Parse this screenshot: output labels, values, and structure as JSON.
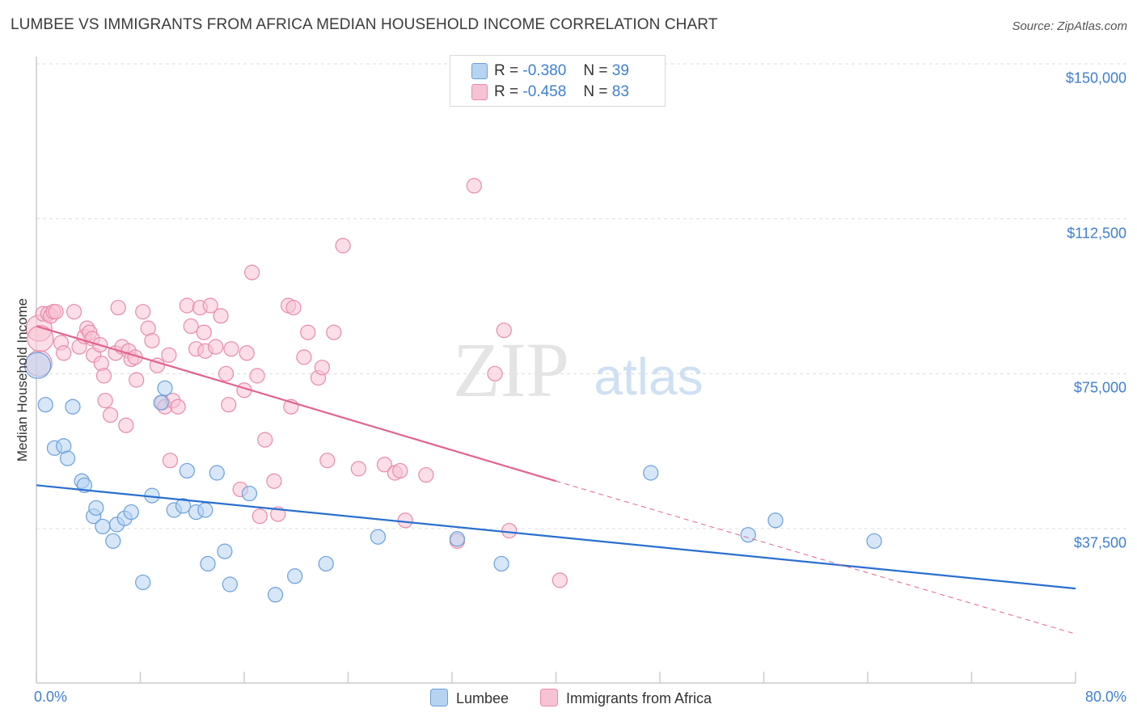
{
  "title": "LUMBEE VS IMMIGRANTS FROM AFRICA MEDIAN HOUSEHOLD INCOME CORRELATION CHART",
  "source": "Source: ZipAtlas.com",
  "watermark": {
    "zip": "ZIP",
    "atlas": "atlas"
  },
  "legend": {
    "r_label": "R =",
    "n_label": "N =",
    "rows": [
      {
        "r": "-0.380",
        "n": "39"
      },
      {
        "r": "-0.458",
        "n": "83"
      }
    ]
  },
  "colors": {
    "lumbee_fill": "#b7d3f2",
    "lumbee_stroke": "#6a9fdc",
    "lumbee_line": "#2a6fd0",
    "africa_fill": "#f7c3d4",
    "africa_stroke": "#e98aaa",
    "africa_line": "#e2638f",
    "axis_text": "#3f7fd0"
  },
  "chart_data": {
    "type": "scatter",
    "title": "LUMBEE VS IMMIGRANTS FROM AFRICA MEDIAN HOUSEHOLD INCOME CORRELATION CHART",
    "xlabel": "",
    "ylabel": "Median Household Income",
    "xlim": [
      0,
      80
    ],
    "ylim": [
      0,
      155000
    ],
    "x_tick_labels": [
      "0.0%",
      "80.0%"
    ],
    "y_tick_labels": [
      "$37,500",
      "$75,000",
      "$112,500",
      "$150,000"
    ],
    "y_ticks": [
      37500,
      75000,
      112500,
      150000
    ],
    "grid": "horizontal dashed",
    "legend_position": "top-center",
    "series": [
      {
        "name": "Lumbee",
        "r": -0.38,
        "n": 39,
        "trend": {
          "x0": 0,
          "y0": 48000,
          "x1": 80,
          "y1": 23000
        },
        "points": [
          [
            0.1,
            77000
          ],
          [
            0.7,
            67500
          ],
          [
            1.4,
            57000
          ],
          [
            2.1,
            57500
          ],
          [
            2.4,
            54500
          ],
          [
            2.8,
            67000
          ],
          [
            3.5,
            49000
          ],
          [
            3.7,
            48000
          ],
          [
            4.4,
            40500
          ],
          [
            4.6,
            42500
          ],
          [
            5.1,
            38000
          ],
          [
            5.9,
            34500
          ],
          [
            6.2,
            38500
          ],
          [
            6.8,
            40000
          ],
          [
            7.3,
            41500
          ],
          [
            8.2,
            24500
          ],
          [
            8.9,
            45500
          ],
          [
            9.6,
            68000
          ],
          [
            9.9,
            71500
          ],
          [
            10.6,
            42000
          ],
          [
            11.3,
            43000
          ],
          [
            11.6,
            51500
          ],
          [
            12.3,
            41500
          ],
          [
            13.0,
            42000
          ],
          [
            13.2,
            29000
          ],
          [
            13.9,
            51000
          ],
          [
            14.5,
            32000
          ],
          [
            14.9,
            24000
          ],
          [
            16.4,
            46000
          ],
          [
            18.4,
            21500
          ],
          [
            19.9,
            26000
          ],
          [
            22.3,
            29000
          ],
          [
            26.3,
            35500
          ],
          [
            32.4,
            35000
          ],
          [
            35.8,
            29000
          ],
          [
            47.3,
            51000
          ],
          [
            54.8,
            36000
          ],
          [
            56.9,
            39500
          ],
          [
            64.5,
            34500
          ]
        ]
      },
      {
        "name": "Immigrants from Africa",
        "r": -0.458,
        "n": 83,
        "trend": {
          "x0": 0,
          "y0": 86500,
          "x1": 40,
          "y1": 49000,
          "x1_dashed": 80,
          "y1_dashed": 12000
        },
        "points": [
          [
            0.2,
            86000
          ],
          [
            0.2,
            77500
          ],
          [
            0.3,
            83500
          ],
          [
            0.5,
            89500
          ],
          [
            0.9,
            89500
          ],
          [
            1.1,
            89000
          ],
          [
            1.3,
            90000
          ],
          [
            1.5,
            90000
          ],
          [
            1.9,
            82500
          ],
          [
            2.1,
            80000
          ],
          [
            2.9,
            90000
          ],
          [
            3.3,
            81500
          ],
          [
            3.7,
            84000
          ],
          [
            3.9,
            86000
          ],
          [
            4.1,
            85000
          ],
          [
            4.3,
            83500
          ],
          [
            4.4,
            79500
          ],
          [
            4.9,
            82000
          ],
          [
            5.0,
            77500
          ],
          [
            5.2,
            74500
          ],
          [
            5.3,
            68500
          ],
          [
            5.7,
            65000
          ],
          [
            6.1,
            80000
          ],
          [
            6.3,
            91000
          ],
          [
            6.6,
            81500
          ],
          [
            6.9,
            62500
          ],
          [
            7.1,
            80500
          ],
          [
            7.3,
            78500
          ],
          [
            7.6,
            79000
          ],
          [
            7.7,
            73500
          ],
          [
            8.2,
            90000
          ],
          [
            8.6,
            86000
          ],
          [
            8.9,
            83000
          ],
          [
            9.3,
            77000
          ],
          [
            9.7,
            68000
          ],
          [
            9.9,
            67000
          ],
          [
            10.2,
            79500
          ],
          [
            10.3,
            54000
          ],
          [
            10.5,
            68500
          ],
          [
            10.9,
            67000
          ],
          [
            11.6,
            91500
          ],
          [
            11.9,
            86500
          ],
          [
            12.3,
            81000
          ],
          [
            12.6,
            91000
          ],
          [
            12.9,
            85000
          ],
          [
            13.0,
            80500
          ],
          [
            13.4,
            91500
          ],
          [
            13.8,
            81500
          ],
          [
            14.2,
            89000
          ],
          [
            14.6,
            75000
          ],
          [
            14.8,
            67500
          ],
          [
            15.0,
            81000
          ],
          [
            15.7,
            47000
          ],
          [
            16.0,
            71000
          ],
          [
            16.2,
            80000
          ],
          [
            16.6,
            99500
          ],
          [
            17.0,
            74500
          ],
          [
            17.2,
            40500
          ],
          [
            17.6,
            59000
          ],
          [
            18.3,
            49000
          ],
          [
            18.6,
            41000
          ],
          [
            19.4,
            91500
          ],
          [
            19.6,
            67000
          ],
          [
            19.8,
            91000
          ],
          [
            20.6,
            79000
          ],
          [
            20.9,
            85000
          ],
          [
            21.7,
            74000
          ],
          [
            22.0,
            76500
          ],
          [
            22.4,
            54000
          ],
          [
            22.9,
            85000
          ],
          [
            23.6,
            106000
          ],
          [
            24.8,
            52000
          ],
          [
            26.8,
            53000
          ],
          [
            27.6,
            51000
          ],
          [
            28.0,
            51500
          ],
          [
            28.4,
            39500
          ],
          [
            30.0,
            50500
          ],
          [
            32.4,
            34500
          ],
          [
            33.7,
            120500
          ],
          [
            35.3,
            75000
          ],
          [
            36.0,
            85500
          ],
          [
            36.4,
            37000
          ],
          [
            40.3,
            25000
          ]
        ]
      }
    ]
  },
  "bottom_legend": [
    "Lumbee",
    "Immigrants from Africa"
  ]
}
